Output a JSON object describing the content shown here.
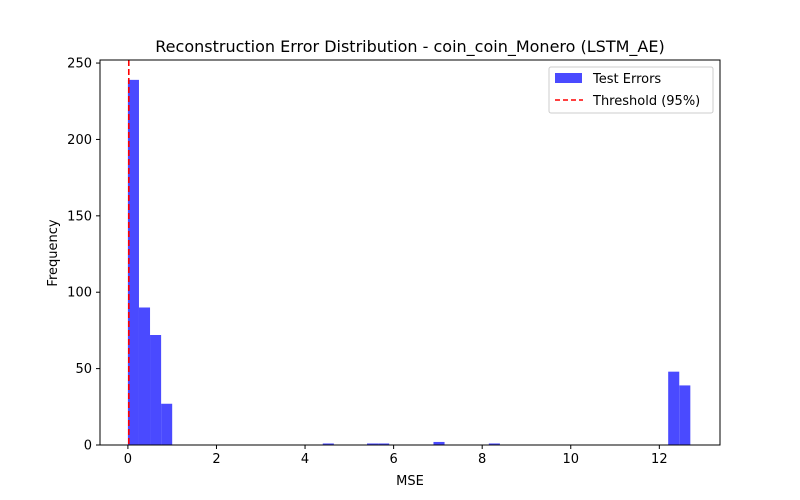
{
  "chart_data": {
    "type": "bar",
    "title": "Reconstruction Error Distribution - coin_coin_Monero (LSTM_AE)",
    "xlabel": "MSE",
    "ylabel": "Frequency",
    "xlim": [
      -0.63,
      13.37
    ],
    "ylim": [
      0,
      252
    ],
    "xticks": [
      0,
      2,
      4,
      6,
      8,
      10,
      12
    ],
    "yticks": [
      0,
      50,
      100,
      150,
      200,
      250
    ],
    "bin_width": 0.25,
    "series": [
      {
        "name": "Test Errors",
        "color": "#4a4aff",
        "bins": [
          {
            "x0": 0.0,
            "x1": 0.25,
            "count": 239
          },
          {
            "x0": 0.25,
            "x1": 0.5,
            "count": 90
          },
          {
            "x0": 0.5,
            "x1": 0.75,
            "count": 72
          },
          {
            "x0": 0.75,
            "x1": 1.0,
            "count": 27
          },
          {
            "x0": 4.4,
            "x1": 4.65,
            "count": 1
          },
          {
            "x0": 5.4,
            "x1": 5.65,
            "count": 1
          },
          {
            "x0": 5.65,
            "x1": 5.9,
            "count": 1
          },
          {
            "x0": 6.9,
            "x1": 7.15,
            "count": 2
          },
          {
            "x0": 8.15,
            "x1": 8.4,
            "count": 1
          },
          {
            "x0": 12.2,
            "x1": 12.45,
            "count": 48
          },
          {
            "x0": 12.45,
            "x1": 12.7,
            "count": 39
          }
        ]
      }
    ],
    "threshold": {
      "name": "Threshold (95%)",
      "x": 0.02,
      "color": "#ff0000"
    },
    "legend": {
      "placement": "top-right",
      "entries": [
        "Test Errors",
        "Threshold (95%)"
      ]
    },
    "grid": false
  }
}
